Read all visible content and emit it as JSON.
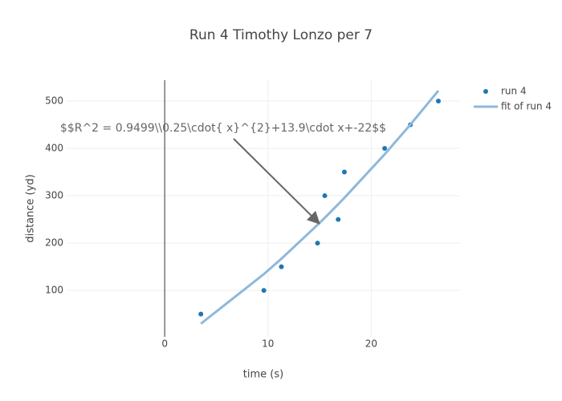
{
  "chart_data": {
    "type": "scatter",
    "title": "Run 4 Timothy Lonzo per 7",
    "x_label": "time (s)",
    "y_label": "distance (yd)",
    "annotation": "$$R^2 = 0.9499\\\\0.25\\cdot{ x}^{2}+13.9\\cdot x+-22$$",
    "xlim": [
      -9.5,
      28.6
    ],
    "ylim": [
      2,
      544
    ],
    "xticks": [
      0,
      10,
      20
    ],
    "yticks": [
      100,
      200,
      300,
      400,
      500
    ],
    "grid": true,
    "legend": "top-right",
    "series": [
      {
        "name": "run 4",
        "mode": "markers",
        "color": "#1f77b4",
        "x": [
          3.5,
          9.6,
          11.3,
          14.8,
          15.5,
          16.8,
          17.4,
          21.3,
          23.8,
          26.5
        ],
        "values": [
          50,
          100,
          150,
          200,
          300,
          250,
          350,
          400,
          450,
          500
        ]
      },
      {
        "name": "fit of run 4",
        "mode": "lines",
        "color": "#8fb8da",
        "x": [
          3.5,
          9.6,
          11.3,
          14.8,
          15.5,
          16.8,
          17.4,
          21.3,
          23.8,
          26.5
        ],
        "values": [
          29.71,
          134.48,
          166.99,
          238.48,
          253.51,
          282.08,
          295.55,
          387.49,
          450.43,
          521.91
        ]
      }
    ]
  }
}
